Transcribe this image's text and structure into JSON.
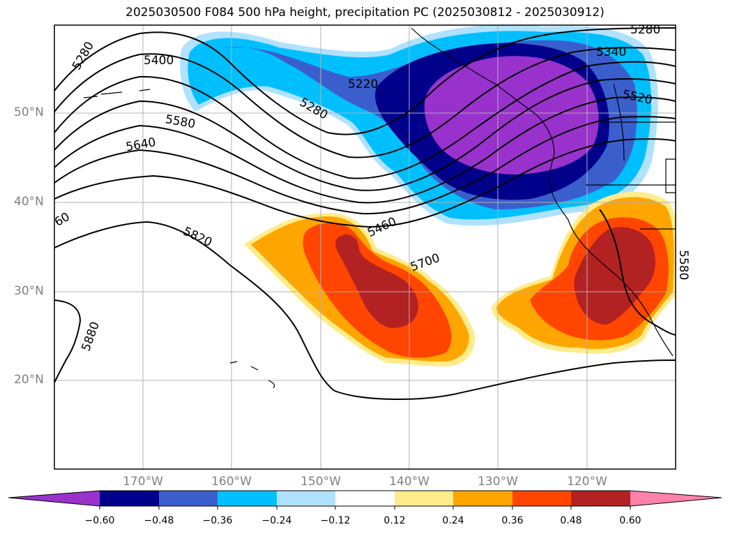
{
  "title": "2025030500 F084 500 hPa height, precipitation PC (2025030812 - 2025030912)",
  "lat_labels": [
    "50°N",
    "40°N",
    "30°N",
    "20°N"
  ],
  "lon_labels": [
    "170°W",
    "160°W",
    "150°W",
    "140°W",
    "130°W",
    "120°W"
  ],
  "contour_labels": [
    "5280",
    "5400",
    "5220",
    "5340",
    "5280",
    "5580",
    "5520",
    "5640",
    "60",
    "5460",
    "5820",
    "5700",
    "5580",
    "5880",
    "5280"
  ],
  "colorbar": {
    "ticks": [
      "−0.60",
      "−0.48",
      "−0.36",
      "−0.24",
      "−0.12",
      "0.12",
      "0.24",
      "0.36",
      "0.48",
      "0.60"
    ],
    "colors": [
      "#9932cc",
      "#00008b",
      "#3a5fcd",
      "#00bfff",
      "#b0e2ff",
      "#ffffff",
      "#ffec8b",
      "#ffa500",
      "#ff4500",
      "#b22222",
      "#ff82ab"
    ]
  }
}
